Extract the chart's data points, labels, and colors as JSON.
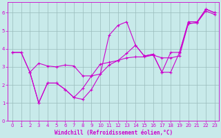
{
  "xlabel": "Windchill (Refroidissement éolien,°C)",
  "bg_color": "#c8eaea",
  "grid_color": "#99bbbb",
  "line_color": "#cc00cc",
  "xlim": [
    -0.5,
    23.5
  ],
  "ylim": [
    0,
    6.6
  ],
  "yticks": [
    0,
    1,
    2,
    3,
    4,
    5,
    6
  ],
  "xticks": [
    0,
    1,
    2,
    3,
    4,
    5,
    6,
    7,
    8,
    9,
    10,
    11,
    12,
    13,
    14,
    15,
    16,
    17,
    18,
    19,
    20,
    21,
    22,
    23
  ],
  "line1_x": [
    0,
    1,
    2,
    3,
    4,
    5,
    6,
    7,
    8,
    9,
    10,
    11,
    12,
    13,
    14,
    15,
    16,
    17,
    18,
    19,
    20,
    21,
    22,
    23
  ],
  "line1_y": [
    3.8,
    3.8,
    2.7,
    1.0,
    2.1,
    2.1,
    1.75,
    1.3,
    1.2,
    1.75,
    2.6,
    4.75,
    5.3,
    5.5,
    4.2,
    3.6,
    3.7,
    2.7,
    2.7,
    3.8,
    5.5,
    5.5,
    6.2,
    6.0
  ],
  "line2_x": [
    0,
    1,
    2,
    3,
    4,
    5,
    6,
    7,
    8,
    9,
    10,
    11,
    12,
    13,
    14,
    15,
    16,
    17,
    18,
    19,
    20,
    21,
    22,
    23
  ],
  "line2_y": [
    3.8,
    3.8,
    2.7,
    3.2,
    3.05,
    3.0,
    3.1,
    3.05,
    2.5,
    2.5,
    3.15,
    3.25,
    3.35,
    3.5,
    3.55,
    3.55,
    3.65,
    3.5,
    3.5,
    3.6,
    5.4,
    5.45,
    6.1,
    5.9
  ],
  "line3_x": [
    2,
    3,
    4,
    5,
    6,
    7,
    8,
    9,
    10,
    11,
    12,
    13,
    14,
    15,
    16,
    17,
    18,
    19,
    20,
    21,
    22,
    23
  ],
  "line3_y": [
    2.7,
    1.0,
    2.1,
    2.1,
    1.75,
    1.3,
    1.8,
    2.5,
    2.6,
    3.1,
    3.35,
    3.75,
    4.2,
    3.6,
    3.7,
    2.7,
    3.8,
    3.8,
    5.4,
    5.45,
    6.2,
    6.0
  ],
  "marker": "+",
  "marker_size": 3,
  "line_width": 0.8,
  "xlabel_fontsize": 5.5,
  "tick_fontsize": 5
}
